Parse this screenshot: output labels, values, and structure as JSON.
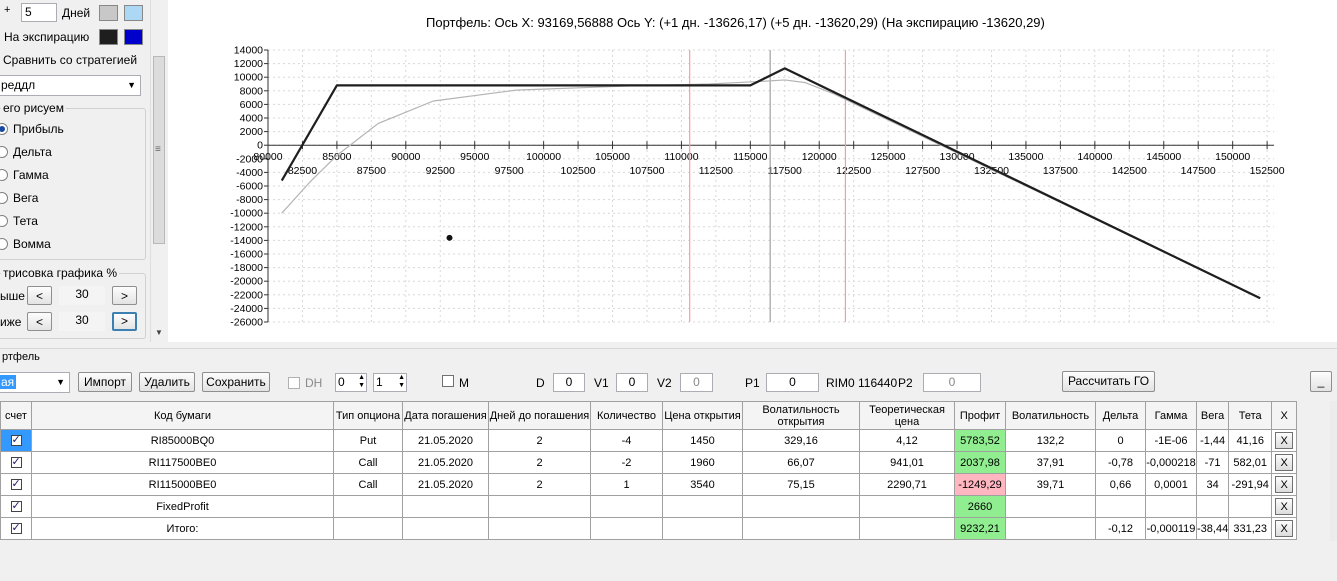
{
  "left_panel": {
    "days_value": "5",
    "days_label": "Дней",
    "expiry_label": "На экспирацию",
    "compare_label": "Сравнить со стратегией",
    "strategy_value": "реддл",
    "draw_group_label": "его рисуем",
    "draw_options": [
      "Прибыль",
      "Дельта",
      "Гамма",
      "Вега",
      "Тета",
      "Вомма"
    ],
    "draw_selected": 0,
    "scale_group_label": "трисовка графика %",
    "above_label": "ыше",
    "above_value": "30",
    "below_label": "иже",
    "below_value": "30",
    "dec_glyph": "<",
    "inc_glyph": ">"
  },
  "colors": {
    "days_swatch1": "#c8c8c8",
    "days_swatch2": "#add8f5",
    "expiry_swatch1": "#1e1e1e",
    "expiry_swatch2": "#0000cd",
    "profit_positive": "#90ee90",
    "profit_negative": "#ffb6c1"
  },
  "chart": {
    "header": "Портфель: Ось X: 93169,56888 Ось Y:  (+1 дн. -13626,17)  (+5 дн. -13620,29)  (На экспирацию -13620,29)"
  },
  "chart_data": {
    "type": "line",
    "xlim": [
      80000,
      153000
    ],
    "ylim": [
      -26000,
      14000
    ],
    "x_ticks_top": [
      80000,
      85000,
      90000,
      95000,
      100000,
      105000,
      110000,
      115000,
      120000,
      125000,
      130000,
      135000,
      140000,
      145000,
      150000
    ],
    "x_ticks_bottom": [
      82500,
      87500,
      92500,
      97500,
      102500,
      107500,
      112500,
      117500,
      122500,
      127500,
      132500,
      137500,
      142500,
      147500,
      152500
    ],
    "y_ticks": [
      14000,
      12000,
      10000,
      8000,
      6000,
      4000,
      2000,
      0,
      -2000,
      -4000,
      -6000,
      -8000,
      -10000,
      -12000,
      -14000,
      -16000,
      -18000,
      -20000,
      -22000,
      -24000,
      -26000
    ],
    "vertical_lines": [
      {
        "x": 110600,
        "color": "#ff9a9a"
      },
      {
        "x": 116440,
        "color": "#a0a0a0"
      },
      {
        "x": 121900,
        "color": "#ff9a9a"
      }
    ],
    "marker": {
      "x": 93170,
      "y": -13620
    },
    "series": [
      {
        "color": "#1e1e1e",
        "x": [
          81000,
          85000,
          115000,
          117500,
          152000
        ],
        "y": [
          -5200,
          8800,
          8800,
          11300,
          -22500
        ]
      },
      {
        "color": "#b4b4b4",
        "x": [
          81000,
          83000,
          85000,
          88000,
          92000,
          98000,
          106000,
          112000,
          116000,
          117500,
          119000,
          121000,
          152000
        ],
        "y": [
          -10000,
          -5500,
          -1500,
          3200,
          6500,
          8100,
          8700,
          9000,
          9400,
          9600,
          9200,
          7600,
          -22500
        ]
      }
    ]
  },
  "portfolio": {
    "section_label": "ртфель",
    "combo_value": "ая",
    "import_label": "Импорт",
    "delete_label": "Удалить",
    "save_label": "Сохранить",
    "dh_label": "DH",
    "spin1": "0",
    "spin2": "1",
    "m_label": "M",
    "d_label": "D",
    "d_value": "0",
    "v1_label": "V1",
    "v1_value": "0",
    "v2_label": "V2",
    "v2_value": "0",
    "p1_label": "P1",
    "p1_value": "0",
    "rim_text": "RIM0 116440",
    "p2_label": "P2",
    "p2_value": "0",
    "calc_label": "Рассчитать ГО",
    "minimize_label": "_"
  },
  "table": {
    "headers": [
      "счет",
      "Код бумаги",
      "Тип опциона",
      "Дата погашения",
      "Дней до погашения",
      "Количество",
      "Цена открытия",
      "Волатильность открытия",
      "Теоретическая цена",
      "Профит",
      "Волатильность",
      "Дельта",
      "Гамма",
      "Вега",
      "Тета",
      "X"
    ],
    "rows": [
      [
        "RI85000BQ0",
        "Put",
        "21.05.2020",
        "2",
        "-4",
        "1450",
        "329,16",
        "4,12",
        "5783,52",
        "132,2",
        "0",
        "-1E-06",
        "-1,44",
        "41,16"
      ],
      [
        "RI117500BE0",
        "Call",
        "21.05.2020",
        "2",
        "-2",
        "1960",
        "66,07",
        "941,01",
        "2037,98",
        "37,91",
        "-0,78",
        "-0,000218",
        "-71",
        "582,01"
      ],
      [
        "RI115000BE0",
        "Call",
        "21.05.2020",
        "2",
        "1",
        "3540",
        "75,15",
        "2290,71",
        "-1249,29",
        "39,71",
        "0,66",
        "0,0001",
        "34",
        "-291,94"
      ],
      [
        "FixedProfit",
        "",
        "",
        "",
        "",
        "",
        "",
        "",
        "2660",
        "",
        "",
        "",
        "",
        ""
      ],
      [
        "Итого:",
        "",
        "",
        "",
        "",
        "",
        "",
        "",
        "9232,21",
        "",
        "-0,12",
        "-0,000119",
        "-38,44",
        "331,23"
      ]
    ],
    "x_label": "X"
  }
}
